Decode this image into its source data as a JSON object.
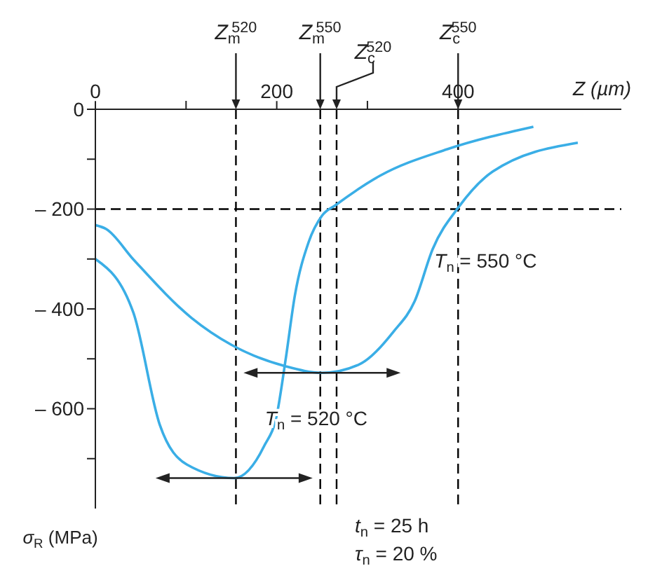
{
  "chart_data": {
    "type": "line",
    "xlabel": "Z (µm)",
    "ylabel": "σ$_{R}$ (MPa)",
    "xlim": [
      0,
      580
    ],
    "ylim": [
      -800,
      0
    ],
    "xticks": [
      0,
      {
        "value": 100,
        "label": null
      },
      200,
      {
        "value": 300,
        "label": null
      },
      400
    ],
    "yticks": [
      {
        "value": -700,
        "label": null
      },
      {
        "value": -600,
        "label": "– 600"
      },
      {
        "value": -500,
        "label": null
      },
      {
        "value": -400,
        "label": "– 400"
      },
      {
        "value": -300,
        "label": null
      },
      {
        "value": -200,
        "label": "– 200"
      },
      {
        "value": -100,
        "label": null
      },
      0
    ],
    "series": [
      {
        "name": "T$_{n}$ = 520 °C",
        "color": "#3aaee6",
        "x": [
          0,
          42,
          71,
          101,
          153,
          186,
          200,
          210,
          220,
          235,
          250,
          265,
          314,
          388,
          483
        ],
        "values": [
          -300,
          -408,
          -632,
          -712,
          -739,
          -675,
          -613,
          -499,
          -373,
          -267,
          -213,
          -192,
          -133,
          -80,
          -35
        ]
      },
      {
        "name": "T$_{n}$ = 550 °C",
        "color": "#3aaee6",
        "x": [
          0,
          12,
          42,
          106,
          150,
          210,
          250,
          290,
          329,
          352,
          372,
          401,
          438,
          532
        ],
        "values": [
          -232,
          -240,
          -301,
          -418,
          -472,
          -515,
          -528,
          -512,
          -445,
          -385,
          -280,
          -195,
          -125,
          -67
        ]
      }
    ],
    "ref_lines": [
      {
        "axis": "y",
        "value": -200,
        "line_style": "dashed",
        "color": "#000000"
      },
      {
        "axis": "x",
        "value": 155,
        "label": "Z$_{m}$$^{520}$",
        "line_style": "dashed",
        "color": "#000000"
      },
      {
        "axis": "x",
        "value": 248,
        "label": "Z$_{m}$$^{550}$",
        "line_style": "dashed",
        "color": "#000000"
      },
      {
        "axis": "x",
        "value": 266,
        "label": "Z$_{c}$$^{520}$",
        "line_style": "dashed",
        "color": "#000000"
      },
      {
        "axis": "x",
        "value": 400,
        "label": "Z$_{c}$$^{550}$",
        "line_style": "dashed",
        "color": "#000000"
      }
    ],
    "annotations": [
      "t$_{n}$ = 25 h",
      "τ$_{n}$ = 20 %"
    ],
    "marker": "none",
    "line_style": "solid"
  }
}
